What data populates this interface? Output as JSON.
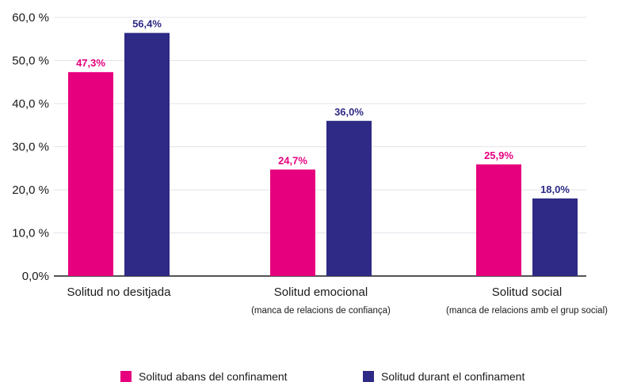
{
  "chart_data": {
    "type": "bar",
    "categories": [
      "Solitud no desitjada",
      "Solitud emocional",
      "Solitud social"
    ],
    "category_subtitles": [
      "",
      "(manca de relacions de confiança)",
      "(manca de relacions amb el grup social)"
    ],
    "series": [
      {
        "name": "Solitud abans del confinament",
        "values": [
          47.3,
          24.7,
          25.9
        ],
        "labels": [
          "47,3%",
          "24,7%",
          "25,9%"
        ],
        "color": "#e6007e"
      },
      {
        "name": "Solitud durant el confinament",
        "values": [
          56.4,
          36.0,
          18.0
        ],
        "labels": [
          "56,4%",
          "36,0%",
          "18,0%"
        ],
        "color": "#2e2a85"
      }
    ],
    "ylim": [
      0,
      60
    ],
    "yticks": [
      0,
      10,
      20,
      30,
      40,
      50,
      60
    ],
    "ytick_labels": [
      "0,0%",
      "10,0 %",
      "20,0 %",
      "30,0 %",
      "40,0 %",
      "50,0 %",
      "60,0 %"
    ],
    "grid": true,
    "legend_position": "bottom"
  }
}
